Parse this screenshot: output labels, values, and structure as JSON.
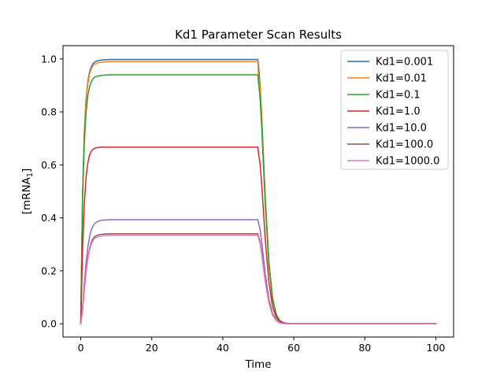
{
  "chart_data": {
    "type": "line",
    "title": "Kd1 Parameter Scan Results",
    "xlabel": "Time",
    "ylabel": "[mRNA",
    "ylabel_subscript": "1",
    "ylabel_suffix": "]",
    "xlim": [
      -5,
      105
    ],
    "ylim": [
      -0.05,
      1.05
    ],
    "xticks": [
      0,
      20,
      40,
      60,
      80,
      100
    ],
    "yticks": [
      0.0,
      0.2,
      0.4,
      0.6,
      0.8,
      1.0
    ],
    "xtick_labels": [
      "0",
      "20",
      "40",
      "60",
      "80",
      "100"
    ],
    "ytick_labels": [
      "0.0",
      "0.2",
      "0.4",
      "0.6",
      "0.8",
      "1.0"
    ],
    "grid": false,
    "legend_position": "top-right",
    "x": [
      0,
      0.5,
      1,
      1.5,
      2,
      2.5,
      3,
      3.5,
      4,
      5,
      6,
      7,
      8,
      10,
      15,
      20,
      30,
      40,
      49.9,
      50,
      50.5,
      51,
      51.5,
      52,
      53,
      54,
      55,
      56,
      57,
      58,
      60,
      62,
      65,
      70,
      80,
      90,
      100
    ],
    "series": [
      {
        "name": "Kd1=0.001",
        "color": "#1f77b4",
        "values": [
          0,
          0.486,
          0.725,
          0.849,
          0.916,
          0.952,
          0.972,
          0.983,
          0.989,
          0.994,
          0.996,
          0.997,
          0.998,
          0.998,
          0.998,
          0.998,
          0.998,
          0.998,
          0.998,
          0.985,
          0.905,
          0.775,
          0.619,
          0.468,
          0.234,
          0.1,
          0.038,
          0.013,
          0.005,
          0.002,
          0,
          0,
          0,
          0,
          0,
          0,
          0
        ]
      },
      {
        "name": "Kd1=0.01",
        "color": "#ff7f0e",
        "values": [
          0,
          0.482,
          0.719,
          0.842,
          0.908,
          0.944,
          0.964,
          0.975,
          0.981,
          0.986,
          0.988,
          0.989,
          0.99,
          0.99,
          0.99,
          0.99,
          0.99,
          0.99,
          0.99,
          0.95,
          0.898,
          0.769,
          0.614,
          0.464,
          0.232,
          0.099,
          0.038,
          0.013,
          0.005,
          0.002,
          0,
          0,
          0,
          0,
          0,
          0,
          0
        ]
      },
      {
        "name": "Kd1=0.1",
        "color": "#2ca02c",
        "values": [
          0,
          0.458,
          0.683,
          0.8,
          0.862,
          0.896,
          0.915,
          0.926,
          0.932,
          0.936,
          0.938,
          0.939,
          0.94,
          0.94,
          0.94,
          0.94,
          0.94,
          0.94,
          0.94,
          0.92,
          0.852,
          0.73,
          0.583,
          0.441,
          0.22,
          0.094,
          0.036,
          0.012,
          0.004,
          0.001,
          0,
          0,
          0,
          0,
          0,
          0,
          0
        ]
      },
      {
        "name": "Kd1=1.0",
        "color": "#d62728",
        "values": [
          0,
          0.275,
          0.453,
          0.554,
          0.608,
          0.638,
          0.652,
          0.659,
          0.663,
          0.666,
          0.667,
          0.667,
          0.667,
          0.667,
          0.667,
          0.667,
          0.667,
          0.667,
          0.667,
          0.65,
          0.604,
          0.518,
          0.414,
          0.312,
          0.156,
          0.067,
          0.025,
          0.009,
          0.003,
          0.001,
          0,
          0,
          0,
          0,
          0,
          0,
          0
        ]
      },
      {
        "name": "Kd1=10.0",
        "color": "#9467bd",
        "values": [
          0,
          0.06,
          0.15,
          0.23,
          0.29,
          0.33,
          0.355,
          0.37,
          0.38,
          0.388,
          0.391,
          0.392,
          0.393,
          0.393,
          0.393,
          0.393,
          0.393,
          0.393,
          0.393,
          0.385,
          0.356,
          0.305,
          0.244,
          0.184,
          0.092,
          0.039,
          0.015,
          0.005,
          0.002,
          0.001,
          0,
          0,
          0,
          0,
          0,
          0,
          0
        ]
      },
      {
        "name": "Kd1=100.0",
        "color": "#8c564b",
        "values": [
          0,
          0.052,
          0.13,
          0.198,
          0.25,
          0.285,
          0.308,
          0.322,
          0.33,
          0.336,
          0.338,
          0.339,
          0.34,
          0.34,
          0.34,
          0.34,
          0.34,
          0.34,
          0.34,
          0.333,
          0.308,
          0.264,
          0.211,
          0.159,
          0.08,
          0.034,
          0.013,
          0.004,
          0.002,
          0.001,
          0,
          0,
          0,
          0,
          0,
          0,
          0
        ]
      },
      {
        "name": "Kd1=1000.0",
        "color": "#e377c2",
        "values": [
          0,
          0.05,
          0.127,
          0.194,
          0.245,
          0.28,
          0.302,
          0.316,
          0.324,
          0.329,
          0.332,
          0.333,
          0.334,
          0.334,
          0.334,
          0.334,
          0.334,
          0.334,
          0.334,
          0.327,
          0.302,
          0.259,
          0.207,
          0.156,
          0.078,
          0.033,
          0.013,
          0.004,
          0.001,
          0,
          0,
          0,
          0,
          0,
          0,
          0,
          0
        ]
      }
    ]
  }
}
